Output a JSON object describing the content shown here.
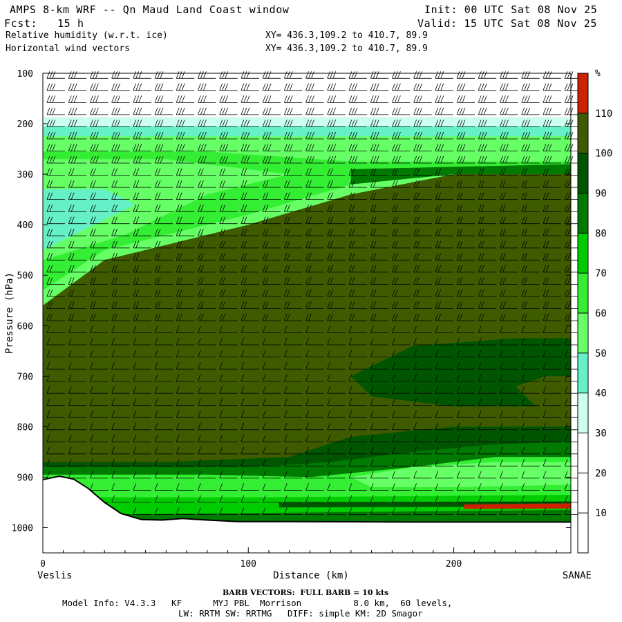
{
  "header": {
    "title": "AMPS 8-km WRF -- Qn Maud Land Coast window",
    "init": "Init: 00 UTC Sat 08 Nov 25",
    "fcst": "Fcst:   15 h",
    "valid": "Valid: 15 UTC Sat 08 Nov 25",
    "field1": "Relative humidity (w.r.t. ice)",
    "field2": "Horizontal wind vectors",
    "xy1": "XY= 436.3,109.2 to 410.7, 89.9",
    "xy2": "XY= 436.3,109.2 to 410.7, 89.9"
  },
  "chart_data": {
    "type": "heatmap",
    "title": "Relative humidity (w.r.t. ice)",
    "overlay": "Horizontal wind vectors (barbs)",
    "xlabel": "Distance (km)",
    "ylabel": "Pressure (hPa)",
    "xlim": [
      0,
      257
    ],
    "ylim": [
      1050,
      100
    ],
    "x_ticks": [
      0,
      100,
      200
    ],
    "y_ticks": [
      100,
      200,
      300,
      400,
      500,
      600,
      700,
      800,
      900,
      1000
    ],
    "x_start_label": "Veslis",
    "x_end_label": "SANAE",
    "colorbar": {
      "unit": "%",
      "levels": [
        10,
        20,
        30,
        40,
        50,
        60,
        70,
        80,
        90,
        100,
        110
      ],
      "colors": [
        "#ffffff",
        "#ffffff",
        "#ffffff",
        "#ccfff0",
        "#66f0c8",
        "#66ff66",
        "#33ee33",
        "#00cc00",
        "#007a00",
        "#005500",
        "#3f5b00",
        "#cc2200"
      ]
    },
    "terrain_surface": [
      {
        "x": 0,
        "p": 905
      },
      {
        "x": 8,
        "p": 898
      },
      {
        "x": 15,
        "p": 904
      },
      {
        "x": 22,
        "p": 922
      },
      {
        "x": 30,
        "p": 950
      },
      {
        "x": 38,
        "p": 972
      },
      {
        "x": 48,
        "p": 984
      },
      {
        "x": 58,
        "p": 985
      },
      {
        "x": 68,
        "p": 982
      },
      {
        "x": 80,
        "p": 985
      },
      {
        "x": 95,
        "p": 988
      },
      {
        "x": 120,
        "p": 988
      },
      {
        "x": 180,
        "p": 989
      },
      {
        "x": 257,
        "p": 989
      }
    ],
    "annotation": "BARB VECTORS:  FULL BARB = 10 kts"
  },
  "footer": {
    "barb_note": "BARB VECTORS:  FULL BARB = 10 kts",
    "model_line": "Model Info: V4.3.3   KF      MYJ PBL  Morrison          8.0 km,  60 levels,",
    "physics_line": "LW: RRTM SW: RRTMG   DIFF: simple KM: 2D Smagor"
  }
}
